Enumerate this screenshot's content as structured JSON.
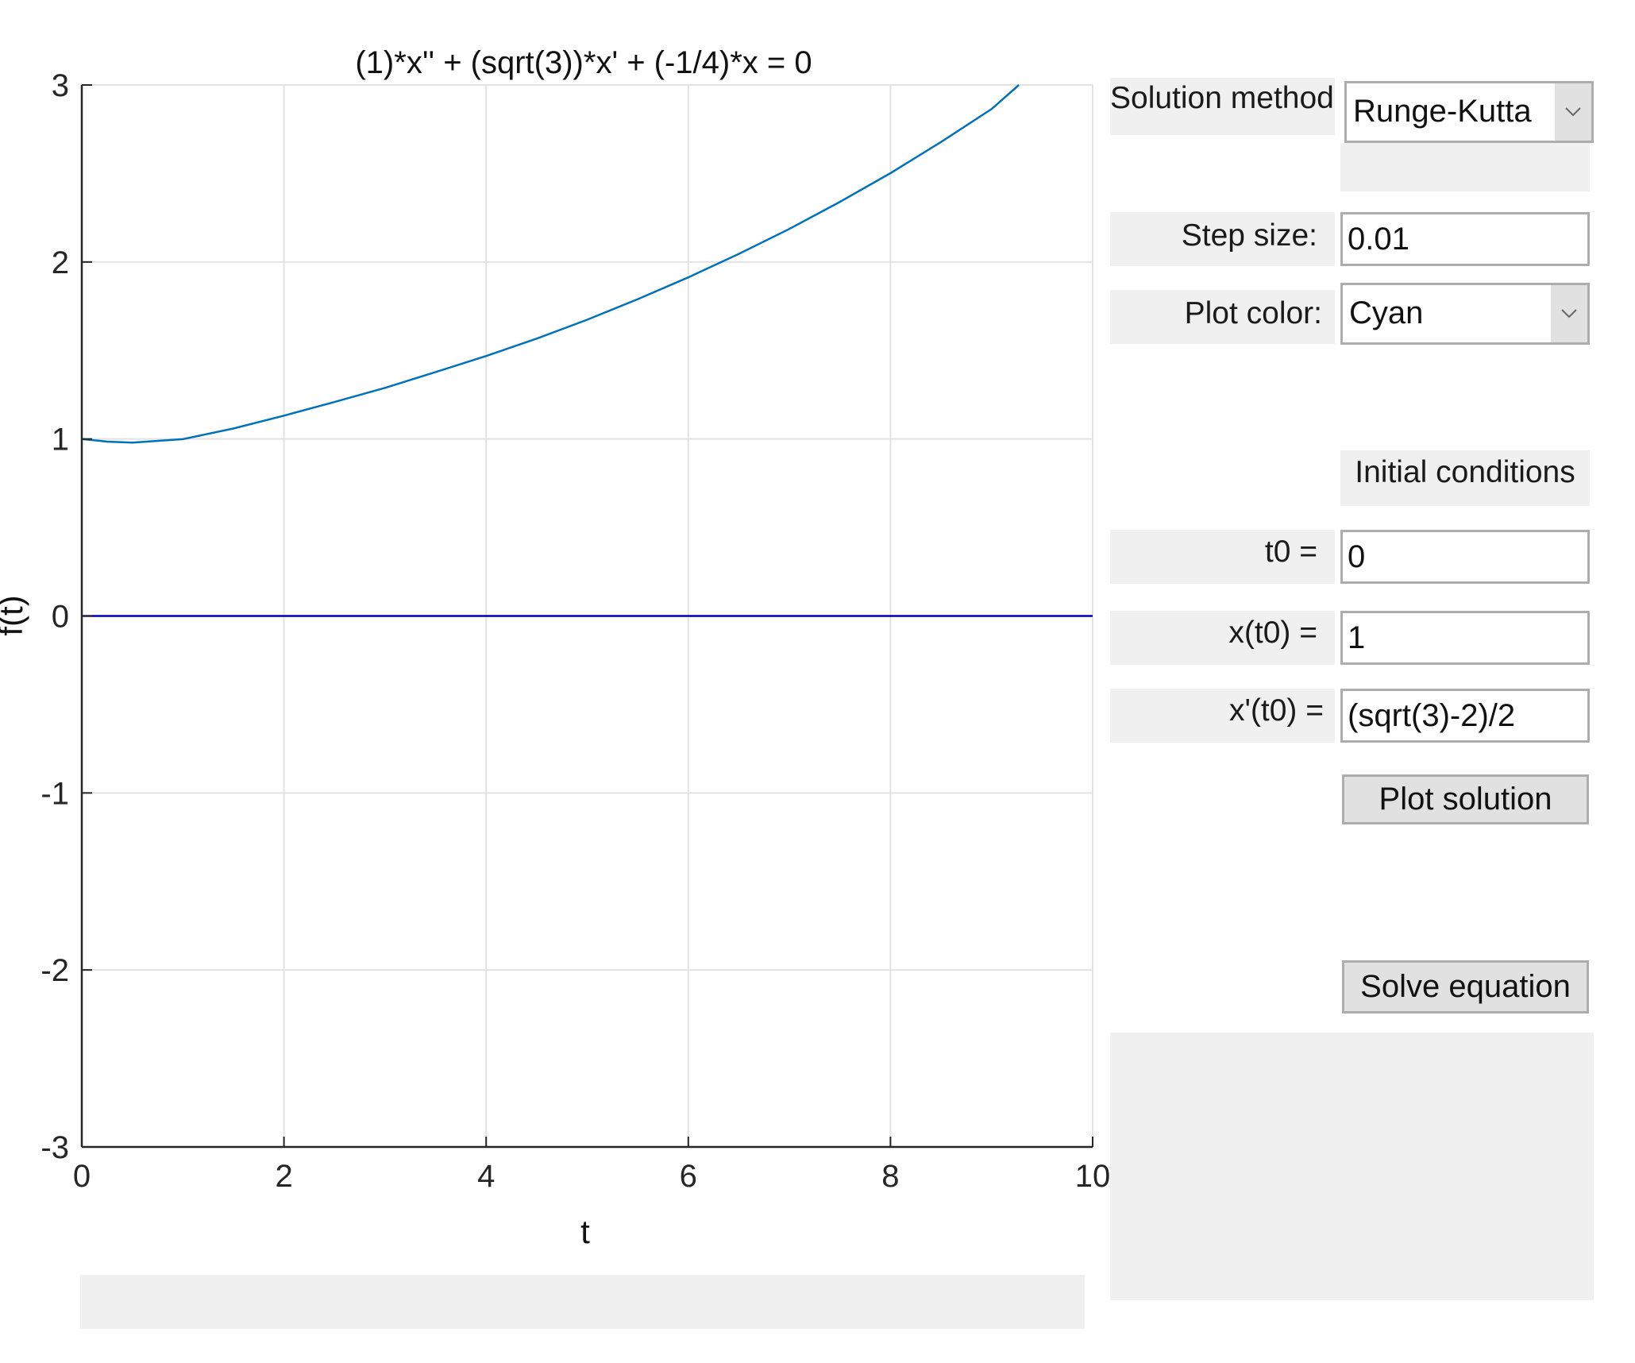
{
  "plot": {
    "title": "(1)*x'' + (sqrt(3))*x' + (-1/4)*x = 0",
    "xlabel": "t",
    "ylabel": "f(t)"
  },
  "controls": {
    "solution_method_label": "Solution method:",
    "solution_method_value": "Runge-Kutta",
    "step_size_label": "Step size:",
    "step_size_value": "0.01",
    "plot_color_label": "Plot color:",
    "plot_color_value": "Cyan",
    "initial_conditions_label": "Initial conditions",
    "t0_label": "t0 =",
    "t0_value": "0",
    "x0_label": "x(t0) =",
    "x0_value": "1",
    "dx0_label": "x'(t0) =",
    "dx0_value": "(sqrt(3)-2)/2",
    "plot_solution_button": "Plot solution",
    "solve_equation_button": "Solve equation"
  },
  "chart_data": {
    "type": "line",
    "title": "(1)*x'' + (sqrt(3))*x' + (-1/4)*x = 0",
    "xlabel": "t",
    "ylabel": "f(t)",
    "xlim": [
      0,
      10
    ],
    "ylim": [
      -3,
      3
    ],
    "xticks": [
      0,
      2,
      4,
      6,
      8,
      10
    ],
    "yticks": [
      -3,
      -2,
      -1,
      0,
      1,
      2,
      3
    ],
    "grid": true,
    "series": [
      {
        "color": "#0072bd",
        "x": [
          0,
          0.25,
          0.5,
          1,
          1.5,
          2,
          2.5,
          3,
          3.5,
          4,
          4.5,
          5,
          5.5,
          6,
          6.5,
          7,
          7.5,
          8,
          8.5,
          9,
          9.27
        ],
        "y": [
          1,
          0.985,
          0.979,
          0.999,
          1.059,
          1.132,
          1.209,
          1.289,
          1.378,
          1.469,
          1.567,
          1.674,
          1.79,
          1.913,
          2.046,
          2.187,
          2.34,
          2.502,
          2.678,
          2.864,
          3.0
        ]
      },
      {
        "color": "#0000b0",
        "x": [
          0,
          10
        ],
        "y": [
          0,
          0
        ]
      }
    ]
  }
}
